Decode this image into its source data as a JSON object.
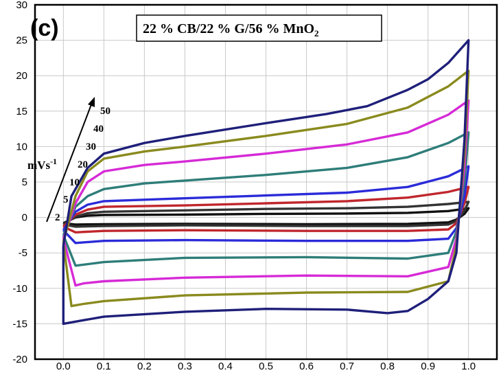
{
  "chart_data": {
    "type": "line",
    "panel_label": "(c)",
    "title_main": "22 % CB/22 % G/56 % MnO",
    "title_sub": "2",
    "xlim": [
      -0.07,
      1.07
    ],
    "ylim": [
      -20,
      30
    ],
    "x_ticks": [
      "0.0",
      "0.1",
      "0.2",
      "0.3",
      "0.4",
      "0.5",
      "0.6",
      "0.7",
      "0.8",
      "0.9",
      "1.0"
    ],
    "y_ticks": [
      "-20",
      "-15",
      "-10",
      "-5",
      "0",
      "5",
      "10",
      "15",
      "20",
      "25",
      "30"
    ],
    "grid": true,
    "scan_rate_unit_main": "mVs",
    "scan_rate_unit_sup": "-1",
    "series": [
      {
        "name": "2",
        "color": "#111111",
        "upper": [
          [
            0.0,
            -0.8
          ],
          [
            0.03,
            0.0
          ],
          [
            0.06,
            0.25
          ],
          [
            0.1,
            0.35
          ],
          [
            0.3,
            0.4
          ],
          [
            0.5,
            0.5
          ],
          [
            0.7,
            0.55
          ],
          [
            0.85,
            0.65
          ],
          [
            0.95,
            0.9
          ],
          [
            1.0,
            1.3
          ]
        ],
        "lower": [
          [
            1.0,
            1.3
          ],
          [
            0.99,
            0.5
          ],
          [
            0.97,
            -0.3
          ],
          [
            0.95,
            -0.7
          ],
          [
            0.85,
            -0.9
          ],
          [
            0.6,
            -0.95
          ],
          [
            0.3,
            -0.9
          ],
          [
            0.1,
            -0.95
          ],
          [
            0.03,
            -1.0
          ],
          [
            0.0,
            -0.8
          ]
        ]
      },
      {
        "name": "5",
        "color": "#333333",
        "upper": [
          [
            0.0,
            -1.0
          ],
          [
            0.03,
            0.1
          ],
          [
            0.06,
            0.6
          ],
          [
            0.1,
            0.8
          ],
          [
            0.3,
            1.0
          ],
          [
            0.5,
            1.2
          ],
          [
            0.7,
            1.3
          ],
          [
            0.85,
            1.5
          ],
          [
            0.95,
            1.9
          ],
          [
            1.0,
            2.2
          ]
        ],
        "lower": [
          [
            1.0,
            2.2
          ],
          [
            0.99,
            1.0
          ],
          [
            0.97,
            -0.5
          ],
          [
            0.95,
            -1.0
          ],
          [
            0.85,
            -1.2
          ],
          [
            0.6,
            -1.2
          ],
          [
            0.3,
            -1.1
          ],
          [
            0.1,
            -1.2
          ],
          [
            0.03,
            -1.3
          ],
          [
            0.0,
            -1.0
          ]
        ]
      },
      {
        "name": "10",
        "color": "#c0272d",
        "upper": [
          [
            0.0,
            -1.3
          ],
          [
            0.03,
            0.4
          ],
          [
            0.06,
            1.1
          ],
          [
            0.1,
            1.5
          ],
          [
            0.3,
            1.7
          ],
          [
            0.5,
            2.0
          ],
          [
            0.7,
            2.3
          ],
          [
            0.85,
            2.8
          ],
          [
            0.95,
            3.6
          ],
          [
            1.0,
            4.3
          ]
        ],
        "lower": [
          [
            1.0,
            4.3
          ],
          [
            0.99,
            2.0
          ],
          [
            0.97,
            -0.8
          ],
          [
            0.95,
            -1.7
          ],
          [
            0.85,
            -1.9
          ],
          [
            0.6,
            -1.9
          ],
          [
            0.3,
            -1.8
          ],
          [
            0.1,
            -1.9
          ],
          [
            0.03,
            -2.1
          ],
          [
            0.0,
            -1.3
          ]
        ]
      },
      {
        "name": "20",
        "color": "#2b2bd9",
        "upper": [
          [
            0.0,
            -1.8
          ],
          [
            0.03,
            0.8
          ],
          [
            0.06,
            1.8
          ],
          [
            0.1,
            2.3
          ],
          [
            0.3,
            2.7
          ],
          [
            0.5,
            3.1
          ],
          [
            0.7,
            3.5
          ],
          [
            0.85,
            4.3
          ],
          [
            0.95,
            5.8
          ],
          [
            1.0,
            7.2
          ]
        ],
        "lower": [
          [
            1.0,
            7.2
          ],
          [
            0.99,
            3.0
          ],
          [
            0.97,
            -1.5
          ],
          [
            0.95,
            -3.0
          ],
          [
            0.85,
            -3.3
          ],
          [
            0.6,
            -3.3
          ],
          [
            0.3,
            -3.2
          ],
          [
            0.1,
            -3.3
          ],
          [
            0.03,
            -3.6
          ],
          [
            0.0,
            -1.8
          ]
        ]
      },
      {
        "name": "30",
        "color": "#2e7d79",
        "upper": [
          [
            0.0,
            -2.5
          ],
          [
            0.03,
            1.5
          ],
          [
            0.06,
            3.0
          ],
          [
            0.1,
            4.0
          ],
          [
            0.2,
            4.8
          ],
          [
            0.3,
            5.2
          ],
          [
            0.5,
            6.0
          ],
          [
            0.7,
            7.0
          ],
          [
            0.85,
            8.5
          ],
          [
            0.95,
            10.5
          ],
          [
            1.0,
            12.0
          ]
        ],
        "lower": [
          [
            1.0,
            12.0
          ],
          [
            0.99,
            5.0
          ],
          [
            0.97,
            -2.0
          ],
          [
            0.95,
            -5.0
          ],
          [
            0.85,
            -5.8
          ],
          [
            0.6,
            -5.6
          ],
          [
            0.3,
            -5.7
          ],
          [
            0.1,
            -6.3
          ],
          [
            0.03,
            -6.8
          ],
          [
            0.0,
            -2.5
          ]
        ]
      },
      {
        "name": "40",
        "color": "#d62ad6",
        "upper": [
          [
            0.0,
            -3.0
          ],
          [
            0.03,
            2.0
          ],
          [
            0.06,
            5.0
          ],
          [
            0.1,
            6.5
          ],
          [
            0.2,
            7.4
          ],
          [
            0.3,
            7.9
          ],
          [
            0.5,
            9.0
          ],
          [
            0.7,
            10.3
          ],
          [
            0.85,
            12.0
          ],
          [
            0.95,
            14.5
          ],
          [
            1.0,
            16.5
          ]
        ],
        "lower": [
          [
            1.0,
            16.5
          ],
          [
            0.99,
            7.0
          ],
          [
            0.97,
            -3.0
          ],
          [
            0.95,
            -7.0
          ],
          [
            0.85,
            -8.3
          ],
          [
            0.6,
            -8.2
          ],
          [
            0.3,
            -8.5
          ],
          [
            0.1,
            -9.0
          ],
          [
            0.05,
            -9.3
          ],
          [
            0.03,
            -9.6
          ],
          [
            0.0,
            -3.0
          ]
        ]
      },
      {
        "name": "50",
        "color": "#8a8a1e",
        "upper": [
          [
            0.0,
            -3.5
          ],
          [
            0.03,
            3.0
          ],
          [
            0.06,
            6.5
          ],
          [
            0.1,
            8.3
          ],
          [
            0.2,
            9.3
          ],
          [
            0.3,
            10.0
          ],
          [
            0.5,
            11.5
          ],
          [
            0.7,
            13.2
          ],
          [
            0.85,
            15.5
          ],
          [
            0.95,
            18.5
          ],
          [
            1.0,
            20.7
          ]
        ],
        "lower": [
          [
            1.0,
            20.7
          ],
          [
            0.99,
            9.0
          ],
          [
            0.97,
            -4.0
          ],
          [
            0.95,
            -9.0
          ],
          [
            0.85,
            -10.5
          ],
          [
            0.6,
            -10.6
          ],
          [
            0.3,
            -11.0
          ],
          [
            0.1,
            -11.8
          ],
          [
            0.05,
            -12.2
          ],
          [
            0.02,
            -12.5
          ],
          [
            0.0,
            -3.5
          ]
        ]
      },
      {
        "name": "",
        "color": "#1f1f7a",
        "upper": [
          [
            0.0,
            -4.0
          ],
          [
            0.02,
            3.0
          ],
          [
            0.06,
            7.0
          ],
          [
            0.1,
            9.0
          ],
          [
            0.2,
            10.5
          ],
          [
            0.3,
            11.5
          ],
          [
            0.5,
            13.3
          ],
          [
            0.65,
            14.6
          ],
          [
            0.75,
            15.7
          ],
          [
            0.85,
            18.0
          ],
          [
            0.9,
            19.5
          ],
          [
            0.95,
            21.8
          ],
          [
            1.0,
            25.0
          ]
        ],
        "lower": [
          [
            1.0,
            25.0
          ],
          [
            0.99,
            11.0
          ],
          [
            0.97,
            -5.0
          ],
          [
            0.95,
            -9.0
          ],
          [
            0.9,
            -11.5
          ],
          [
            0.85,
            -13.2
          ],
          [
            0.8,
            -13.5
          ],
          [
            0.7,
            -13.0
          ],
          [
            0.5,
            -12.9
          ],
          [
            0.3,
            -13.3
          ],
          [
            0.1,
            -14.0
          ],
          [
            0.05,
            -14.5
          ],
          [
            0.0,
            -15.0
          ],
          [
            0.0,
            -4.0
          ]
        ]
      }
    ],
    "rate_labels": [
      "2",
      "5",
      "10",
      "20",
      "30",
      "40",
      "50"
    ]
  }
}
